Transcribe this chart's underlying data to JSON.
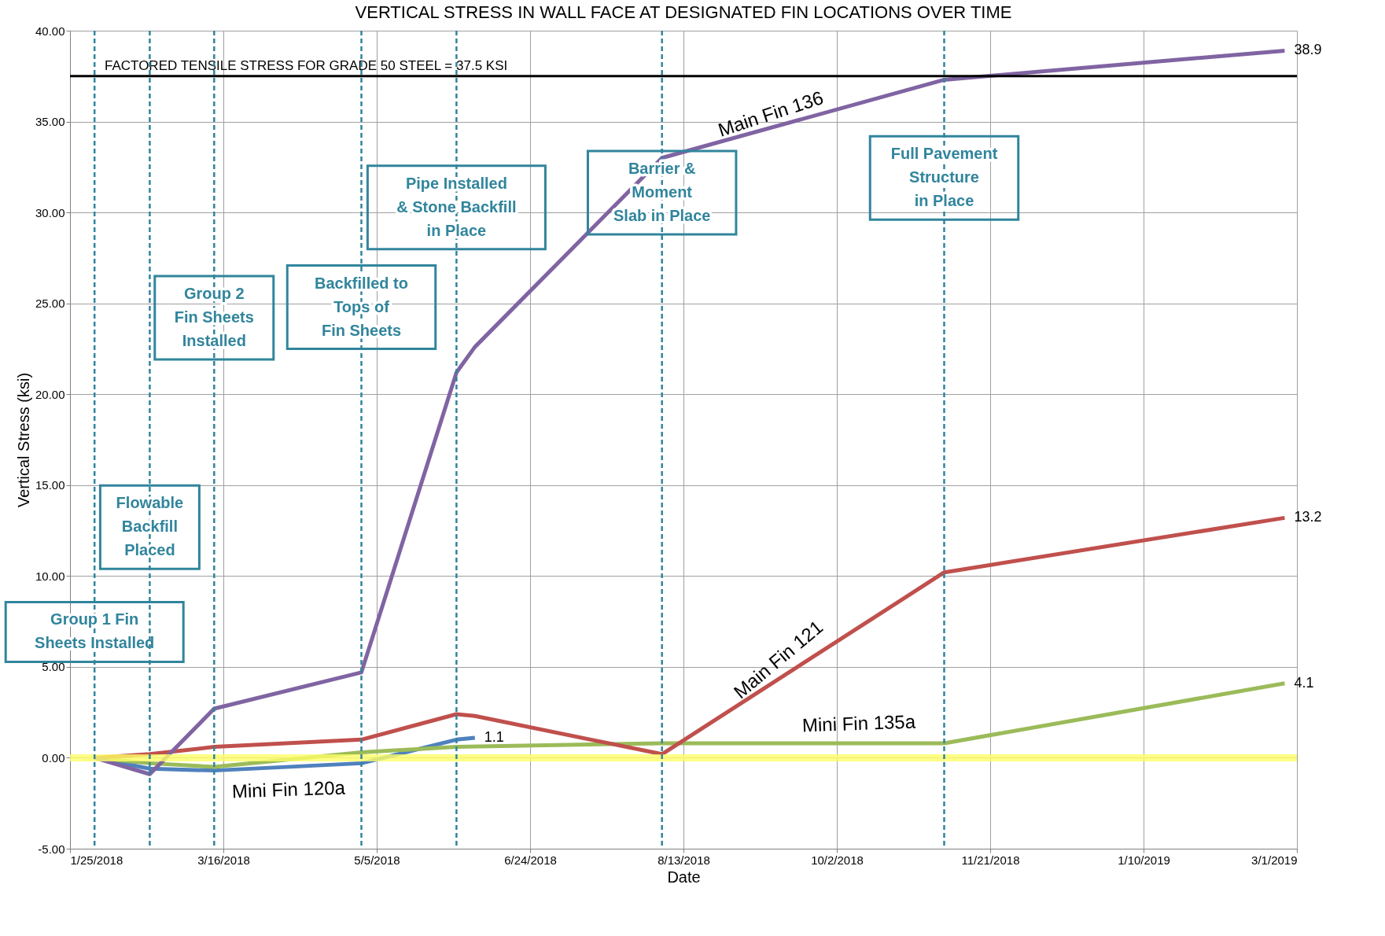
{
  "chart_data": {
    "type": "line",
    "title": "VERTICAL STRESS IN WALL FACE AT DESIGNATED FIN LOCATIONS OVER TIME",
    "xlabel": "Date",
    "ylabel": "Vertical Stress (ksi)",
    "xlim": [
      "2018-01-25",
      "2019-03-01"
    ],
    "xticks": [
      {
        "value": "2018-01-25",
        "label": "1/25/2018"
      },
      {
        "value": "2018-03-16",
        "label": "3/16/2018"
      },
      {
        "value": "2018-05-05",
        "label": "5/5/2018"
      },
      {
        "value": "2018-06-24",
        "label": "6/24/2018"
      },
      {
        "value": "2018-08-13",
        "label": "8/13/2018"
      },
      {
        "value": "2018-10-02",
        "label": "10/2/2018"
      },
      {
        "value": "2018-11-21",
        "label": "11/21/2018"
      },
      {
        "value": "2019-01-10",
        "label": "1/10/2019"
      },
      {
        "value": "2019-03-01",
        "label": "3/1/2019"
      }
    ],
    "ylim": [
      -5,
      40
    ],
    "yticks": [
      {
        "value": -5,
        "label": "-5.00"
      },
      {
        "value": 0,
        "label": "0.00"
      },
      {
        "value": 5,
        "label": "5.00"
      },
      {
        "value": 10,
        "label": "10.00"
      },
      {
        "value": 15,
        "label": "15.00"
      },
      {
        "value": 20,
        "label": "20.00"
      },
      {
        "value": 25,
        "label": "25.00"
      },
      {
        "value": 30,
        "label": "30.00"
      },
      {
        "value": 35,
        "label": "35.00"
      },
      {
        "value": 40,
        "label": "40.00"
      }
    ],
    "grid": true,
    "line_style": "solid",
    "series": [
      {
        "name": "Main Fin 136",
        "color": "#8064a2",
        "x": [
          "2018-02-02",
          "2018-02-20",
          "2018-03-13",
          "2018-04-30",
          "2018-05-31",
          "2018-06-06",
          "2018-08-06",
          "2018-11-06",
          "2019-02-25"
        ],
        "values": [
          0.0,
          -0.9,
          2.7,
          4.7,
          21.2,
          22.6,
          33.0,
          37.3,
          38.9
        ],
        "value_labels": [
          null,
          null,
          null,
          null,
          null,
          null,
          null,
          null,
          "38.9"
        ]
      },
      {
        "name": "Main Fin 121",
        "color": "#c0504d",
        "x": [
          "2018-02-02",
          "2018-02-20",
          "2018-03-13",
          "2018-04-30",
          "2018-05-31",
          "2018-06-06",
          "2018-08-06",
          "2018-11-06",
          "2019-02-25"
        ],
        "values": [
          0.0,
          0.2,
          0.6,
          1.0,
          2.4,
          2.3,
          0.2,
          10.2,
          13.2
        ],
        "value_labels": [
          null,
          null,
          null,
          null,
          null,
          null,
          null,
          null,
          "13.2"
        ]
      },
      {
        "name": "Mini Fin 135a",
        "color": "#9bbb59",
        "x": [
          "2018-02-02",
          "2018-02-20",
          "2018-03-13",
          "2018-04-30",
          "2018-05-31",
          "2018-08-06",
          "2018-11-06",
          "2019-02-25"
        ],
        "values": [
          0.0,
          -0.3,
          -0.5,
          0.3,
          0.6,
          0.8,
          0.8,
          4.1
        ],
        "value_labels": [
          null,
          null,
          null,
          null,
          null,
          null,
          null,
          "4.1"
        ]
      },
      {
        "name": "Mini Fin 120a",
        "color": "#4f81bd",
        "x": [
          "2018-02-02",
          "2018-02-20",
          "2018-03-13",
          "2018-04-30",
          "2018-05-31",
          "2018-06-06"
        ],
        "values": [
          0.0,
          -0.6,
          -0.7,
          -0.3,
          1.0,
          1.1
        ],
        "value_labels": [
          null,
          null,
          null,
          null,
          null,
          "1.1"
        ]
      }
    ],
    "ref_lines": [
      {
        "axis": "y",
        "value": 0,
        "label": null,
        "color": "#ffff66",
        "line_style": "solid"
      },
      {
        "axis": "y",
        "value": 37.5,
        "label": "FACTORED TENSILE STRESS FOR GRADE 50 STEEL = 37.5 KSI",
        "color": "#000000",
        "line_style": "solid"
      },
      {
        "axis": "x",
        "value": "2018-02-02",
        "label": "Group 1 Fin\nSheets Installed",
        "color": "#31859c",
        "line_style": "dashed"
      },
      {
        "axis": "x",
        "value": "2018-02-20",
        "label": "Flowable\nBackfill\nPlaced",
        "color": "#31859c",
        "line_style": "dashed"
      },
      {
        "axis": "x",
        "value": "2018-03-13",
        "label": "Group 2\nFin Sheets\nInstalled",
        "color": "#31859c",
        "line_style": "dashed"
      },
      {
        "axis": "x",
        "value": "2018-04-30",
        "label": "Backfilled to\nTops of\nFin Sheets",
        "color": "#31859c",
        "line_style": "dashed"
      },
      {
        "axis": "x",
        "value": "2018-05-31",
        "label": "Pipe Installed\n& Stone Backfill\nin Place",
        "color": "#31859c",
        "line_style": "dashed"
      },
      {
        "axis": "x",
        "value": "2018-08-06",
        "label": "Barrier &\nMoment\nSlab in Place",
        "color": "#31859c",
        "line_style": "dashed"
      },
      {
        "axis": "x",
        "value": "2018-11-06",
        "label": "Full Pavement\nStructure\nin Place",
        "color": "#31859c",
        "line_style": "dashed"
      }
    ]
  }
}
